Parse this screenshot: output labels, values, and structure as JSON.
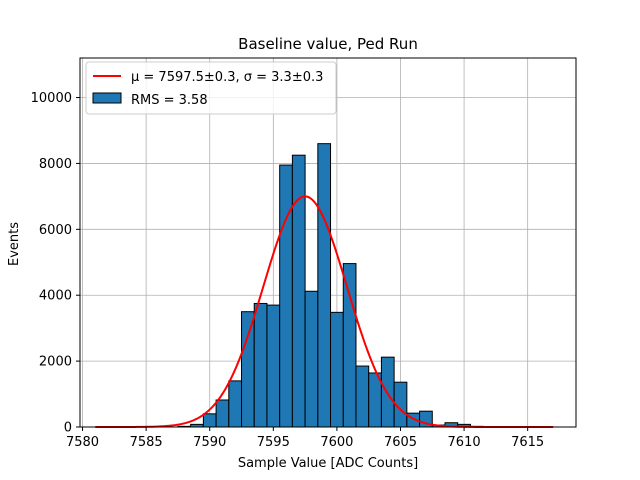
{
  "chart_data": {
    "type": "bar",
    "title": "Baseline value, Ped Run",
    "xlabel": "Sample Value [ADC Counts]",
    "ylabel": "Events",
    "xlim": [
      7579.8,
      7618.8
    ],
    "ylim": [
      0,
      11200
    ],
    "xticks": [
      7580,
      7585,
      7590,
      7595,
      7600,
      7605,
      7610,
      7615
    ],
    "yticks": [
      0,
      2000,
      4000,
      6000,
      8000,
      10000
    ],
    "grid": true,
    "legend_position": "top-left",
    "histogram": {
      "name": "RMS = 3.58",
      "color": "#1f77b4",
      "bin_left_edges": [
        7587.5,
        7588.5,
        7589.5,
        7590.5,
        7591.5,
        7592.5,
        7593.5,
        7594.5,
        7595.5,
        7596.5,
        7597.5,
        7598.5,
        7599.5,
        7600.5,
        7601.5,
        7602.5,
        7603.5,
        7604.5,
        7605.5,
        7606.5,
        7607.5,
        7608.5,
        7609.5,
        7610.5
      ],
      "bin_width": 1,
      "counts": [
        20,
        80,
        400,
        820,
        1400,
        3500,
        3750,
        3700,
        7950,
        8250,
        4120,
        8600,
        3480,
        4960,
        1850,
        1640,
        2120,
        1360,
        420,
        480,
        60,
        130,
        80,
        20
      ]
    },
    "fit": {
      "name": "$\\mu = 7597.5\\pm0.3$, $\\sigma = 3.3\\pm0.3$",
      "legend_label": "μ = 7597.5±0.3, σ = 3.3±0.3",
      "color": "#ff0000",
      "type": "gaussian",
      "amplitude": 7000,
      "mean": 7597.5,
      "sigma": 3.3,
      "x_range": [
        7581,
        7617
      ]
    }
  }
}
